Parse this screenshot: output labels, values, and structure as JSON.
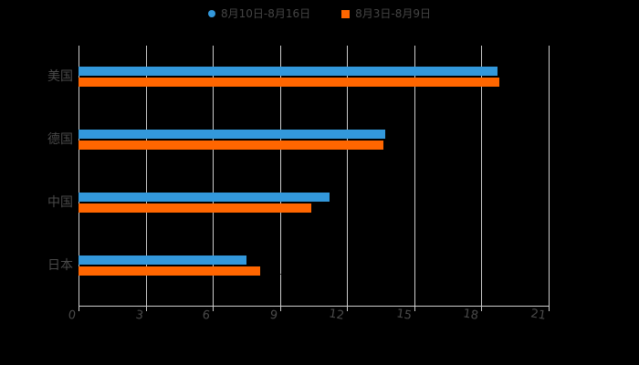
{
  "legend": {
    "items": [
      {
        "label": "8月10日-8月16日",
        "marker": "circle",
        "color": "#3398db"
      },
      {
        "label": "8月3日-8月9日",
        "marker": "square",
        "color": "#ff6600"
      }
    ]
  },
  "chart_data": {
    "type": "bar",
    "orientation": "horizontal",
    "title": "",
    "xlabel": "",
    "ylabel": "",
    "categories": [
      "美国",
      "德国",
      "中国",
      "日本"
    ],
    "series": [
      {
        "name": "8月10日-8月16日",
        "color": "#3398db",
        "values": [
          18.7,
          13.7,
          11.2,
          7.5
        ]
      },
      {
        "name": "8月3日-8月9日",
        "color": "#ff6600",
        "values": [
          18.8,
          13.6,
          10.4,
          8.1
        ]
      }
    ],
    "value_labels": [
      [
        "18.7",
        "13.7",
        "11.2",
        "7.5"
      ],
      [
        "18.8",
        "13.6",
        "10.4",
        "8.1"
      ]
    ],
    "xlim": [
      0,
      21
    ],
    "xticks": [
      "0",
      "3",
      "6",
      "9",
      "12",
      "15",
      "18",
      "21"
    ],
    "grid": true,
    "legend_position": "top-center",
    "colors": {
      "background": "#000000",
      "grid_line": "#cccccc",
      "axis_line": "#cccccc",
      "tick_label": "#4a4a4a",
      "category_label": "#4a4a4a",
      "legend_text": "#454545",
      "bar_value_label": "#000000"
    }
  }
}
